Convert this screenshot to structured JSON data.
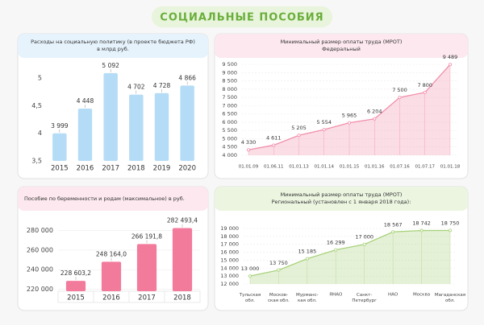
{
  "title": "СОЦИАЛЬНЫЕ ПОСОБИЯ",
  "chart_data": [
    {
      "type": "bar",
      "title": "Расходы на социальную политику (в проекте бюджета РФ)\nв млрд руб.",
      "categories": [
        "2015",
        "2016",
        "2017",
        "2018",
        "2019",
        "2020"
      ],
      "values": [
        3.999,
        4.448,
        5.092,
        4.702,
        4.728,
        4.866
      ],
      "value_labels": [
        "3 999",
        "4 448",
        "5 092",
        "4 702",
        "4 728",
        "4 866"
      ],
      "color": "#b5dcf6",
      "ylim": [
        3.5,
        5.25
      ],
      "yticks": [
        {
          "value": 3.5,
          "label": "3,5"
        },
        4,
        {
          "value": 4.5,
          "label": "4,5"
        },
        5
      ],
      "grid": false
    },
    {
      "type": "area",
      "title": "Минимальный размер оплаты труда  (МРОТ)",
      "subtitle": "Федеральный",
      "categories": [
        "01.01.09",
        "01.06.11",
        "01.01.13",
        "01.01.14",
        "01.01.15",
        "01.01.16",
        "01.07.16",
        "01.07.17",
        "01.01.18"
      ],
      "values": [
        4330,
        4611,
        5205,
        5554,
        5965,
        6204,
        7500,
        7800,
        9489
      ],
      "value_labels": [
        "4 330",
        "4 611",
        "5 205",
        "5 554",
        "5 965",
        "6 204",
        "7 500",
        "7 800",
        "9 489"
      ],
      "color": "#f28fab",
      "ylim": [
        4000,
        9500
      ],
      "yticks": [
        {
          "value": 4000,
          "label": "4 000"
        },
        {
          "value": 4500,
          "label": "4 500"
        },
        {
          "value": 5000,
          "label": "5 000"
        },
        {
          "value": 5500,
          "label": "5 500"
        },
        {
          "value": 6000,
          "label": "6 000"
        },
        {
          "value": 6500,
          "label": "6 500"
        },
        {
          "value": 7000,
          "label": "7 000"
        },
        {
          "value": 7500,
          "label": "7 500"
        },
        {
          "value": 8000,
          "label": "8 000"
        },
        {
          "value": 8500,
          "label": "8 500"
        },
        {
          "value": 9000,
          "label": "9 000"
        },
        {
          "value": 9500,
          "label": "9 500"
        }
      ],
      "grid": true
    },
    {
      "type": "bar",
      "title": "Пособие по беременности и родам (максимальное) в руб.",
      "categories": [
        "2015",
        "2016",
        "2017",
        "2018"
      ],
      "values": [
        228603.2,
        248164.0,
        266191.8,
        282493.4
      ],
      "value_labels": [
        "228 603,2",
        "248 164,0",
        "266 191,8",
        "282 493,4"
      ],
      "color": "#f27b9c",
      "ylim": [
        218000,
        292000
      ],
      "yticks": [
        {
          "value": 220000,
          "label": "220 000"
        },
        {
          "value": 240000,
          "label": "240 000"
        },
        {
          "value": 260000,
          "label": "260 000"
        },
        {
          "value": 280000,
          "label": "280 000"
        }
      ],
      "grid": true
    },
    {
      "type": "area",
      "title": "Минимальный размер оплаты труда  (МРОТ)",
      "subtitle": "Региональный (установлен с 1 января 2018 года):",
      "categories": [
        "Тульская\nобл.",
        "Москов-\nская обл.",
        "Мурманс-\nкая обл.",
        "ЯНАО",
        "Санкт-\nПетербург",
        "НАО",
        "Москва",
        "Магаданская\nобл."
      ],
      "values": [
        13000,
        13750,
        15185,
        16299,
        17000,
        18567,
        18742,
        18750
      ],
      "value_labels": [
        "13 000",
        "13 750",
        "15 185",
        "16 299",
        "17 000",
        "18 567",
        "18 742",
        "18 750"
      ],
      "color": "#a9d27c",
      "ylim": [
        12000,
        19000
      ],
      "yticks": [
        {
          "value": 12000,
          "label": "12 000"
        },
        {
          "value": 13000,
          "label": "13 000"
        },
        {
          "value": 14000,
          "label": "14 000"
        },
        {
          "value": 15000,
          "label": "15 000"
        },
        {
          "value": 16000,
          "label": "16 000"
        },
        {
          "value": 17000,
          "label": "17 000"
        },
        {
          "value": 18000,
          "label": "18 000"
        },
        {
          "value": 19000,
          "label": "19 000"
        }
      ],
      "grid": true
    }
  ]
}
